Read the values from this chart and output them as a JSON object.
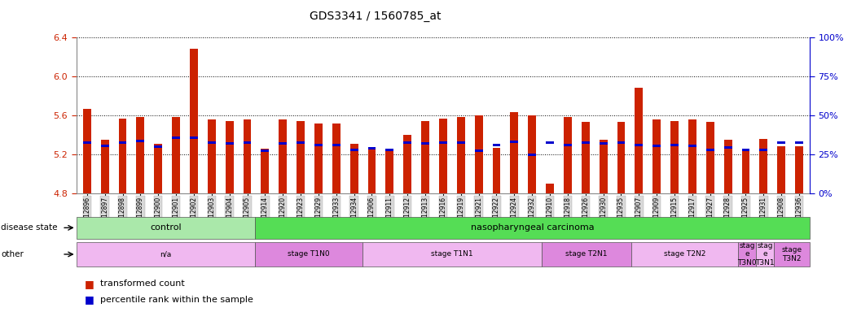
{
  "title": "GDS3341 / 1560785_at",
  "samples": [
    "GSM312896",
    "GSM312897",
    "GSM312898",
    "GSM312899",
    "GSM312900",
    "GSM312901",
    "GSM312902",
    "GSM312903",
    "GSM312904",
    "GSM312905",
    "GSM312914",
    "GSM312920",
    "GSM312923",
    "GSM312929",
    "GSM312933",
    "GSM312934",
    "GSM312906",
    "GSM312911",
    "GSM312912",
    "GSM312913",
    "GSM312916",
    "GSM312919",
    "GSM312921",
    "GSM312922",
    "GSM312924",
    "GSM312932",
    "GSM312910",
    "GSM312918",
    "GSM312926",
    "GSM312930",
    "GSM312935",
    "GSM312907",
    "GSM312909",
    "GSM312915",
    "GSM312917",
    "GSM312927",
    "GSM312928",
    "GSM312925",
    "GSM312931",
    "GSM312908",
    "GSM312936"
  ],
  "red_values": [
    5.67,
    5.35,
    5.57,
    5.58,
    5.31,
    5.58,
    6.28,
    5.56,
    5.54,
    5.56,
    5.26,
    5.56,
    5.54,
    5.52,
    5.52,
    5.31,
    5.26,
    5.26,
    5.4,
    5.54,
    5.57,
    5.58,
    5.6,
    5.27,
    5.63,
    5.6,
    4.9,
    5.58,
    5.53,
    5.35,
    5.53,
    5.88,
    5.56,
    5.54,
    5.56,
    5.53,
    5.35,
    5.25,
    5.36,
    5.28,
    5.28
  ],
  "blue_values": [
    5.32,
    5.29,
    5.32,
    5.34,
    5.28,
    5.37,
    5.37,
    5.32,
    5.31,
    5.32,
    5.24,
    5.31,
    5.32,
    5.3,
    5.3,
    5.25,
    5.26,
    5.25,
    5.32,
    5.31,
    5.32,
    5.32,
    5.24,
    5.3,
    5.33,
    5.2,
    5.32,
    5.3,
    5.32,
    5.31,
    5.32,
    5.3,
    5.29,
    5.3,
    5.29,
    5.25,
    5.27,
    5.25,
    5.25,
    5.32,
    5.32
  ],
  "ymin": 4.8,
  "ymax": 6.4,
  "yticks_left": [
    4.8,
    5.2,
    5.6,
    6.0,
    6.4
  ],
  "yticks_right": [
    0,
    25,
    50,
    75,
    100
  ],
  "disease_state_groups": [
    {
      "label": "control",
      "start": 0,
      "end": 9,
      "color": "#aae8aa"
    },
    {
      "label": "nasopharyngeal carcinoma",
      "start": 10,
      "end": 40,
      "color": "#55dd55"
    }
  ],
  "other_groups": [
    {
      "label": "n/a",
      "start": 0,
      "end": 9,
      "color": "#f0b8f0"
    },
    {
      "label": "stage T1N0",
      "start": 10,
      "end": 15,
      "color": "#dd88dd"
    },
    {
      "label": "stage T1N1",
      "start": 16,
      "end": 25,
      "color": "#f0b8f0"
    },
    {
      "label": "stage T2N1",
      "start": 26,
      "end": 30,
      "color": "#dd88dd"
    },
    {
      "label": "stage T2N2",
      "start": 31,
      "end": 36,
      "color": "#f0b8f0"
    },
    {
      "label": "stag\ne\nT3N0",
      "start": 37,
      "end": 37,
      "color": "#dd88dd"
    },
    {
      "label": "stag\ne\nT3N1",
      "start": 38,
      "end": 38,
      "color": "#f0b8f0"
    },
    {
      "label": "stage\nT3N2",
      "start": 39,
      "end": 40,
      "color": "#dd88dd"
    }
  ],
  "bar_color": "#cc2200",
  "blue_color": "#0000cc",
  "bar_width": 0.45,
  "background_color": "#ffffff",
  "tick_color_left": "#cc2200",
  "tick_color_right": "#0000cc"
}
